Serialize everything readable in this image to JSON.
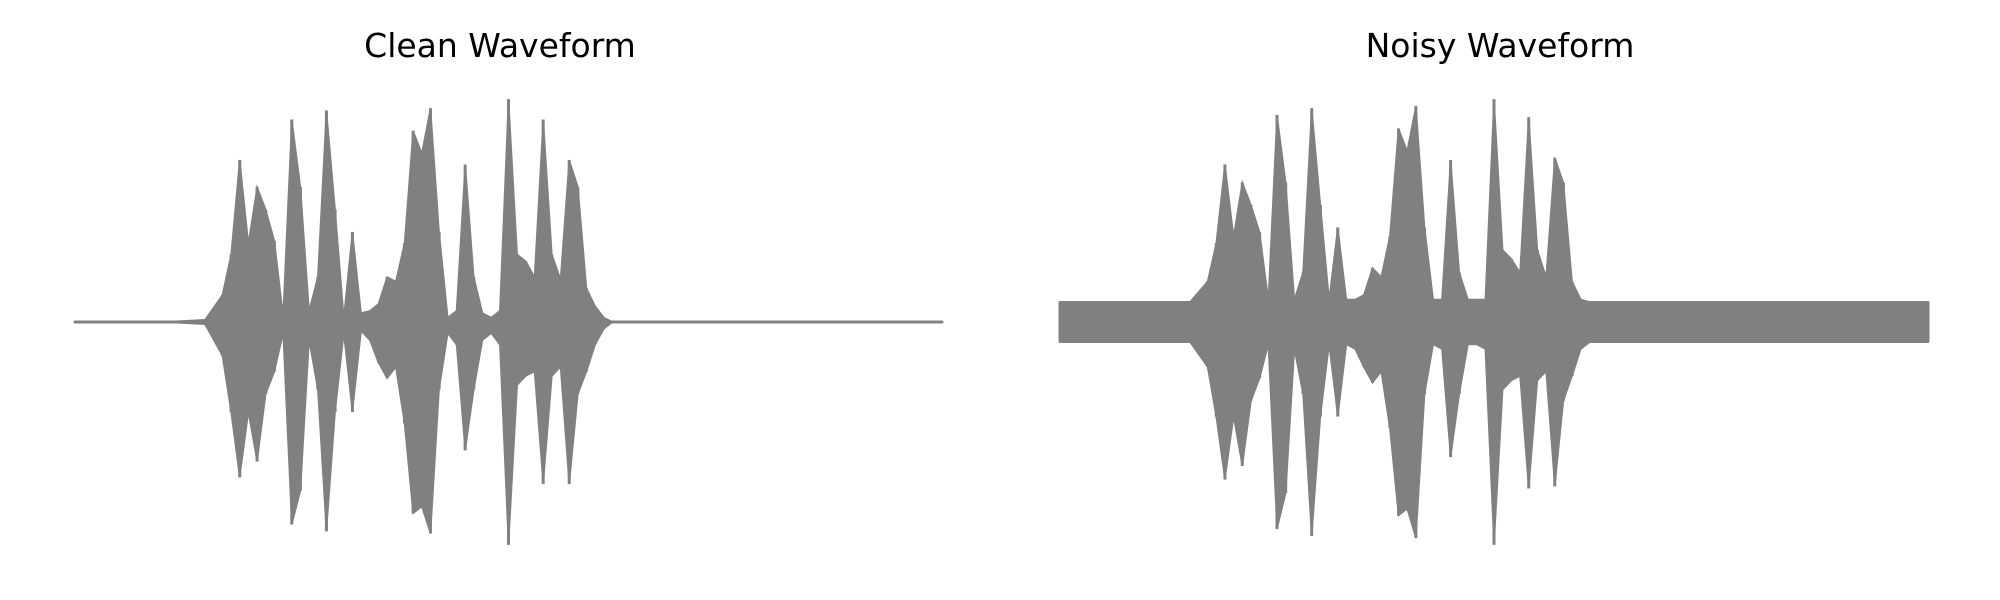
{
  "colors": {
    "waveform": "#808080",
    "background": "#ffffff"
  },
  "chart_data": [
    {
      "type": "line",
      "title": "Clean Waveform",
      "xlabel": "",
      "ylabel": "",
      "axes_visible": false,
      "grid": false,
      "ylim": [
        -1.0,
        1.0
      ],
      "x": [
        0.0,
        0.05,
        0.1,
        0.15,
        0.17,
        0.18,
        0.19,
        0.2,
        0.21,
        0.22,
        0.23,
        0.24,
        0.25,
        0.26,
        0.27,
        0.28,
        0.29,
        0.3,
        0.31,
        0.32,
        0.33,
        0.34,
        0.35,
        0.36,
        0.37,
        0.38,
        0.39,
        0.4,
        0.41,
        0.42,
        0.43,
        0.44,
        0.45,
        0.46,
        0.47,
        0.48,
        0.49,
        0.5,
        0.51,
        0.52,
        0.53,
        0.54,
        0.55,
        0.56,
        0.57,
        0.58,
        0.59,
        0.6,
        0.61,
        0.62,
        0.63,
        0.64,
        0.65,
        0.66,
        0.67,
        0.68,
        0.69,
        0.7,
        0.72,
        0.75,
        0.8,
        0.85,
        0.9,
        0.95,
        1.0
      ],
      "series": [
        {
          "upper": [
            0.0,
            0.0,
            0.0,
            0.01,
            0.12,
            0.3,
            0.72,
            0.35,
            0.6,
            0.5,
            0.36,
            0.03,
            0.9,
            0.6,
            0.05,
            0.2,
            0.94,
            0.5,
            0.02,
            0.4,
            0.04,
            0.05,
            0.08,
            0.2,
            0.18,
            0.35,
            0.85,
            0.75,
            0.95,
            0.4,
            0.02,
            0.05,
            0.7,
            0.2,
            0.04,
            0.02,
            0.05,
            0.99,
            0.3,
            0.27,
            0.2,
            0.9,
            0.3,
            0.19,
            0.72,
            0.6,
            0.15,
            0.07,
            0.02,
            0.0,
            0.0,
            0.0,
            0.0,
            0.0,
            0.0,
            0.0,
            0.0,
            0.0,
            0.0,
            0.0,
            0.0,
            0.0,
            0.0,
            0.0,
            0.0
          ],
          "lower": [
            0.0,
            0.0,
            0.0,
            -0.01,
            -0.15,
            -0.4,
            -0.69,
            -0.4,
            -0.62,
            -0.32,
            -0.22,
            -0.05,
            -0.9,
            -0.75,
            -0.08,
            -0.3,
            -0.93,
            -0.4,
            -0.05,
            -0.4,
            -0.04,
            -0.08,
            -0.18,
            -0.25,
            -0.2,
            -0.45,
            -0.85,
            -0.82,
            -0.94,
            -0.3,
            -0.05,
            -0.1,
            -0.57,
            -0.3,
            -0.08,
            -0.05,
            -0.1,
            -0.99,
            -0.28,
            -0.24,
            -0.22,
            -0.72,
            -0.24,
            -0.2,
            -0.72,
            -0.32,
            -0.22,
            -0.1,
            -0.03,
            0.0,
            0.0,
            0.0,
            0.0,
            0.0,
            0.0,
            0.0,
            0.0,
            0.0,
            0.0,
            0.0,
            0.0,
            0.0,
            0.0,
            0.0,
            0.0
          ]
        }
      ]
    },
    {
      "type": "line",
      "title": "Noisy Waveform",
      "xlabel": "",
      "ylabel": "",
      "axes_visible": false,
      "grid": false,
      "ylim": [
        -1.0,
        1.0
      ],
      "x": [
        0.0,
        0.05,
        0.1,
        0.15,
        0.17,
        0.18,
        0.19,
        0.2,
        0.21,
        0.22,
        0.23,
        0.24,
        0.25,
        0.26,
        0.27,
        0.28,
        0.29,
        0.3,
        0.31,
        0.32,
        0.33,
        0.34,
        0.35,
        0.36,
        0.37,
        0.38,
        0.39,
        0.4,
        0.41,
        0.42,
        0.43,
        0.44,
        0.45,
        0.46,
        0.47,
        0.48,
        0.49,
        0.5,
        0.51,
        0.52,
        0.53,
        0.54,
        0.55,
        0.56,
        0.57,
        0.58,
        0.59,
        0.6,
        0.61,
        0.62,
        0.63,
        0.64,
        0.65,
        0.66,
        0.67,
        0.68,
        0.69,
        0.7,
        0.72,
        0.75,
        0.8,
        0.85,
        0.9,
        0.95,
        1.0
      ],
      "series": [
        {
          "upper": [
            0.09,
            0.09,
            0.09,
            0.09,
            0.18,
            0.35,
            0.7,
            0.38,
            0.62,
            0.52,
            0.4,
            0.1,
            0.92,
            0.62,
            0.1,
            0.22,
            0.95,
            0.52,
            0.1,
            0.42,
            0.1,
            0.1,
            0.12,
            0.24,
            0.2,
            0.38,
            0.86,
            0.76,
            0.96,
            0.42,
            0.1,
            0.1,
            0.72,
            0.22,
            0.1,
            0.1,
            0.1,
            0.99,
            0.32,
            0.28,
            0.22,
            0.91,
            0.32,
            0.2,
            0.73,
            0.62,
            0.18,
            0.1,
            0.09,
            0.09,
            0.09,
            0.09,
            0.09,
            0.09,
            0.09,
            0.09,
            0.09,
            0.09,
            0.09,
            0.09,
            0.09,
            0.09,
            0.09,
            0.09,
            0.09
          ],
          "lower": [
            -0.09,
            -0.09,
            -0.09,
            -0.09,
            -0.2,
            -0.42,
            -0.7,
            -0.42,
            -0.64,
            -0.35,
            -0.25,
            -0.1,
            -0.92,
            -0.76,
            -0.12,
            -0.32,
            -0.95,
            -0.42,
            -0.1,
            -0.42,
            -0.1,
            -0.12,
            -0.2,
            -0.27,
            -0.22,
            -0.47,
            -0.86,
            -0.83,
            -0.96,
            -0.32,
            -0.1,
            -0.12,
            -0.6,
            -0.32,
            -0.1,
            -0.1,
            -0.12,
            -0.99,
            -0.3,
            -0.26,
            -0.24,
            -0.74,
            -0.26,
            -0.22,
            -0.73,
            -0.35,
            -0.24,
            -0.12,
            -0.09,
            -0.09,
            -0.09,
            -0.09,
            -0.09,
            -0.09,
            -0.09,
            -0.09,
            -0.09,
            -0.09,
            -0.09,
            -0.09,
            -0.09,
            -0.09,
            -0.09,
            -0.09,
            -0.09
          ]
        }
      ]
    }
  ]
}
